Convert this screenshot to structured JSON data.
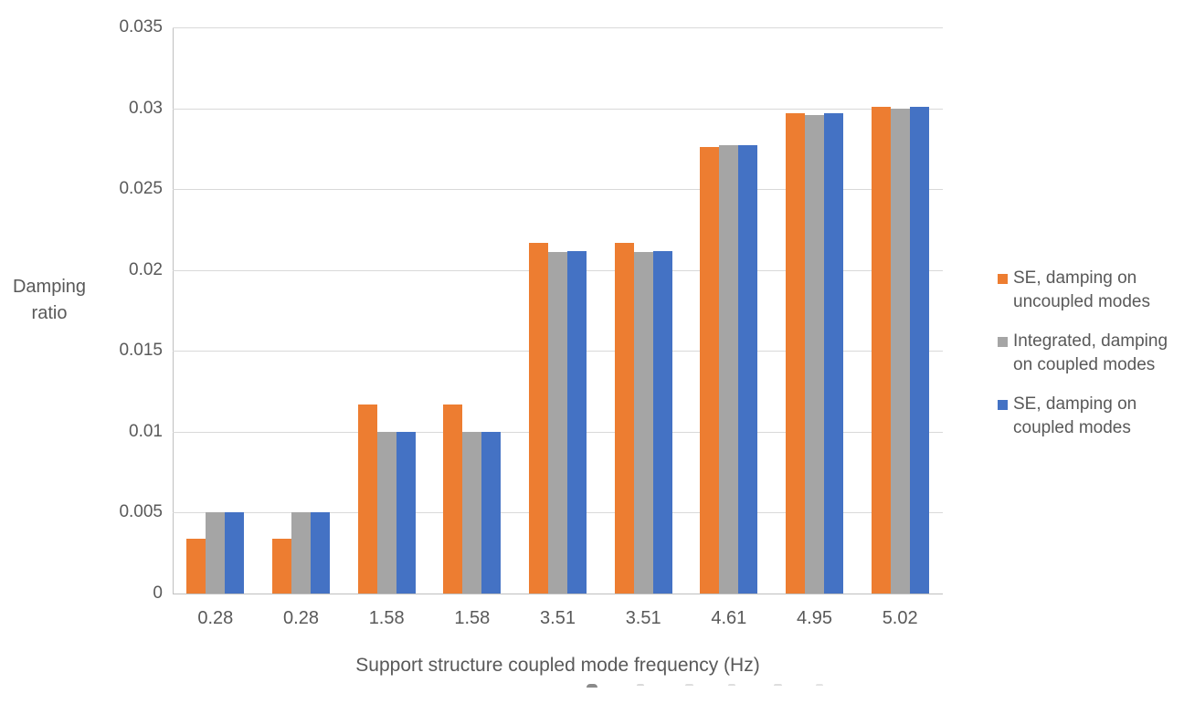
{
  "figure": {
    "background": "#FFFFFF",
    "text_color": "#595959",
    "gridline_color": "#D9D9D9",
    "axis_line_color": "#BFBFBF"
  },
  "chart_data": {
    "type": "bar",
    "title": "",
    "xlabel": "Support structure coupled mode frequency (Hz)",
    "ylabel": "Damping ratio",
    "ylabel_lines": [
      "Damping",
      "ratio"
    ],
    "categories": [
      "0.28",
      "0.28",
      "1.58",
      "1.58",
      "3.51",
      "3.51",
      "4.61",
      "4.95",
      "5.02"
    ],
    "series": [
      {
        "name": "SE, damping on uncoupled modes",
        "color": "#ED7D31",
        "values": [
          0.0034,
          0.0034,
          0.0117,
          0.0117,
          0.0217,
          0.0217,
          0.0276,
          0.0297,
          0.0301
        ]
      },
      {
        "name": "Integrated, damping on coupled modes",
        "color": "#A5A5A5",
        "values": [
          0.005,
          0.005,
          0.01,
          0.01,
          0.0211,
          0.0211,
          0.0277,
          0.0296,
          0.03
        ]
      },
      {
        "name": "SE, damping on coupled modes",
        "color": "#4472C4",
        "values": [
          0.005,
          0.005,
          0.01,
          0.01,
          0.0212,
          0.0212,
          0.0277,
          0.0297,
          0.0301
        ]
      }
    ],
    "legend_lines": [
      [
        "SE, damping on",
        "uncoupled modes"
      ],
      [
        "Integrated, damping",
        "on coupled modes"
      ],
      [
        "SE, damping on",
        "coupled modes"
      ]
    ],
    "ylim": [
      0,
      0.035
    ],
    "ytick_step": 0.005,
    "yticks_top_to_bottom": [
      "0.035",
      "0.03",
      "0.025",
      "0.02",
      "0.015",
      "0.01",
      "0.005",
      "0"
    ],
    "grid": true,
    "legend_position": "right"
  }
}
